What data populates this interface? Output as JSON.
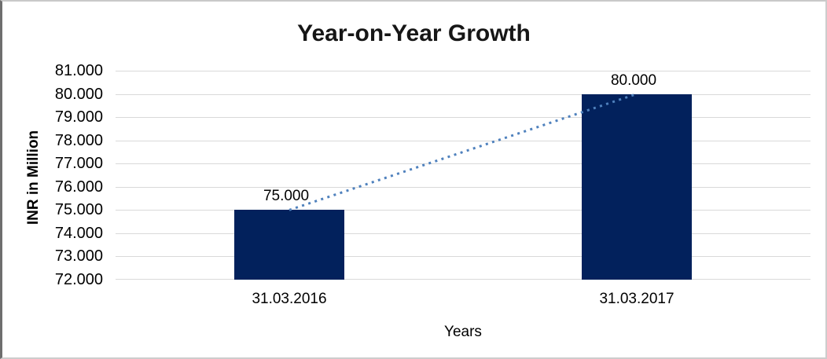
{
  "chart_data": {
    "type": "bar",
    "title": "Year-on-Year Growth",
    "xlabel": "Years",
    "ylabel": "INR in Million",
    "categories": [
      "31.03.2016",
      "31.03.2017"
    ],
    "values": [
      75000,
      80000
    ],
    "data_labels": [
      "75.000",
      "80.000"
    ],
    "y_ticks": [
      {
        "value": 81000,
        "label": "81.000"
      },
      {
        "value": 80000,
        "label": "80.000"
      },
      {
        "value": 79000,
        "label": "79.000"
      },
      {
        "value": 78000,
        "label": "78.000"
      },
      {
        "value": 77000,
        "label": "77.000"
      },
      {
        "value": 76000,
        "label": "76.000"
      },
      {
        "value": 75000,
        "label": "75.000"
      },
      {
        "value": 74000,
        "label": "74.000"
      },
      {
        "value": 73000,
        "label": "73.000"
      },
      {
        "value": 72000,
        "label": "72.000"
      }
    ],
    "ylim": [
      72000,
      81000
    ],
    "grid": true,
    "legend": "none",
    "colors": {
      "bar": "#02215C",
      "trendline": "#4F81BD",
      "gridline": "#D9D9D9",
      "text": "#000000",
      "title_text": "#161616"
    },
    "trendline": {
      "style": "dotted",
      "from_category": "31.03.2016",
      "to_category": "31.03.2017"
    }
  }
}
